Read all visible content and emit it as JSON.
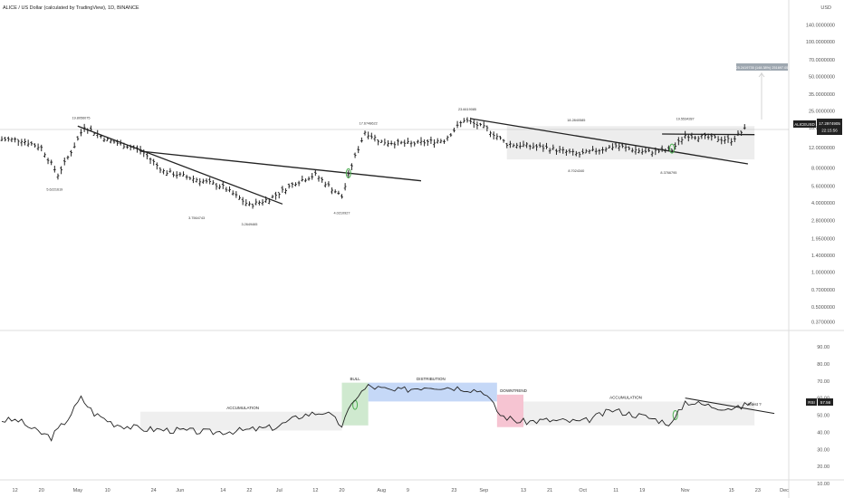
{
  "header": {
    "symbol_title": "ALICE / US Dollar (calculated by TradingView), 1D, BINANCE"
  },
  "price_axis": {
    "unit": "USD",
    "labels": [
      "140.0000000",
      "100.0000000",
      "70.0000000",
      "50.0000000",
      "35.0000000",
      "25.0000000",
      "18.0000000",
      "12.0000000",
      "8.0000000",
      "5.6000000",
      "4.0000000",
      "2.8000000",
      "1.9500000",
      "1.4000000",
      "1.0000000",
      "0.7000000",
      "0.5000000",
      "0.3700000"
    ],
    "current_price": "17.2974905",
    "countdown": "22:15:56",
    "symbol_tag": "ALICEUSD"
  },
  "rsi_axis": {
    "labels": [
      "90.00",
      "80.00",
      "70.00",
      "60.00",
      "50.00",
      "40.00",
      "30.00",
      "20.00",
      "10.00"
    ],
    "tag": "RSI",
    "value": "57.56"
  },
  "time_axis": {
    "labels": [
      "12",
      "20",
      "May",
      "10",
      "24",
      "Jun",
      "14",
      "22",
      "Jul",
      "12",
      "20",
      "Aug",
      "9",
      "23",
      "Sep",
      "13",
      "21",
      "Oct",
      "11",
      "19",
      "Nov",
      "15",
      "23",
      "Dec"
    ]
  },
  "price_labels": [
    "19.8056075",
    "5.6221619",
    "3.7564743",
    "3.2649465",
    "4.0210927",
    "17.6748622",
    "23.6619085",
    "18.2840585",
    "8.7024340",
    "19.5534287",
    "8.3766795"
  ],
  "projection_box": "25.2419735 (148.38%) 251697.05",
  "rsi_annotations": {
    "accumulation_1": "ACCUMULATION",
    "bull": "BULL",
    "distribution": "DISTRIBUTION",
    "downtrend": "DOWNTREND",
    "accumulation_2": "ACCUMULATION",
    "retest": "retest ?"
  },
  "colors": {
    "bull_green": "#4caf50",
    "distribution_blue": "#c5d8f7",
    "downtrend_pink": "#f6c4d2",
    "gray_zone": "#e8e8e8",
    "candle": "#222222"
  },
  "chart_data": [
    {
      "type": "ohlc",
      "title": "ALICE / US Dollar (calculated by TradingView), 1D, BINANCE",
      "y_scale": "log",
      "ylim": [
        0.37,
        140
      ],
      "x_range": [
        "2021-04-08",
        "2021-12-01"
      ],
      "close_series": [
        [
          "2021-04-08",
          14.2
        ],
        [
          "2021-04-14",
          14.0
        ],
        [
          "2021-04-20",
          12.0
        ],
        [
          "2021-04-25",
          7.0
        ],
        [
          "2021-04-30",
          12.5
        ],
        [
          "2021-05-03",
          18.5
        ],
        [
          "2021-05-10",
          14.0
        ],
        [
          "2021-05-20",
          11.5
        ],
        [
          "2021-05-27",
          7.5
        ],
        [
          "2021-06-05",
          6.5
        ],
        [
          "2021-06-14",
          5.5
        ],
        [
          "2021-06-22",
          3.8
        ],
        [
          "2021-06-28",
          4.3
        ],
        [
          "2021-07-06",
          6.0
        ],
        [
          "2021-07-12",
          7.0
        ],
        [
          "2021-07-20",
          4.5
        ],
        [
          "2021-07-23",
          8.5
        ],
        [
          "2021-07-27",
          16.5
        ],
        [
          "2021-08-01",
          13.5
        ],
        [
          "2021-08-10",
          13.0
        ],
        [
          "2021-08-20",
          14.0
        ],
        [
          "2021-08-26",
          21.0
        ],
        [
          "2021-09-02",
          17.5
        ],
        [
          "2021-09-08",
          13.0
        ],
        [
          "2021-09-20",
          12.0
        ],
        [
          "2021-09-30",
          10.5
        ],
        [
          "2021-10-11",
          12.5
        ],
        [
          "2021-10-20",
          11.0
        ],
        [
          "2021-10-28",
          11.5
        ],
        [
          "2021-11-01",
          15.5
        ],
        [
          "2021-11-10",
          14.5
        ],
        [
          "2021-11-15",
          14.0
        ],
        [
          "2021-11-19",
          17.3
        ]
      ]
    },
    {
      "type": "line",
      "title": "RSI",
      "ylim": [
        10,
        95
      ],
      "current": 57.56,
      "series": [
        [
          "2021-04-08",
          47
        ],
        [
          "2021-04-13",
          47
        ],
        [
          "2021-04-18",
          41
        ],
        [
          "2021-04-23",
          37
        ],
        [
          "2021-04-28",
          48
        ],
        [
          "2021-05-02",
          60
        ],
        [
          "2021-05-06",
          51
        ],
        [
          "2021-05-12",
          45
        ],
        [
          "2021-05-20",
          42
        ],
        [
          "2021-06-01",
          41
        ],
        [
          "2021-06-10",
          40
        ],
        [
          "2021-06-20",
          41
        ],
        [
          "2021-06-30",
          43
        ],
        [
          "2021-07-08",
          50
        ],
        [
          "2021-07-15",
          52
        ],
        [
          "2021-07-20",
          44
        ],
        [
          "2021-07-24",
          60
        ],
        [
          "2021-07-28",
          67
        ],
        [
          "2021-08-05",
          64
        ],
        [
          "2021-08-15",
          67
        ],
        [
          "2021-08-25",
          66
        ],
        [
          "2021-09-01",
          64
        ],
        [
          "2021-09-06",
          50
        ],
        [
          "2021-09-12",
          46
        ],
        [
          "2021-09-20",
          47
        ],
        [
          "2021-10-01",
          46
        ],
        [
          "2021-10-10",
          53
        ],
        [
          "2021-10-20",
          49
        ],
        [
          "2021-10-28",
          45
        ],
        [
          "2021-11-01",
          58
        ],
        [
          "2021-11-10",
          55
        ],
        [
          "2021-11-17",
          54
        ],
        [
          "2021-11-21",
          57.56
        ]
      ]
    }
  ]
}
